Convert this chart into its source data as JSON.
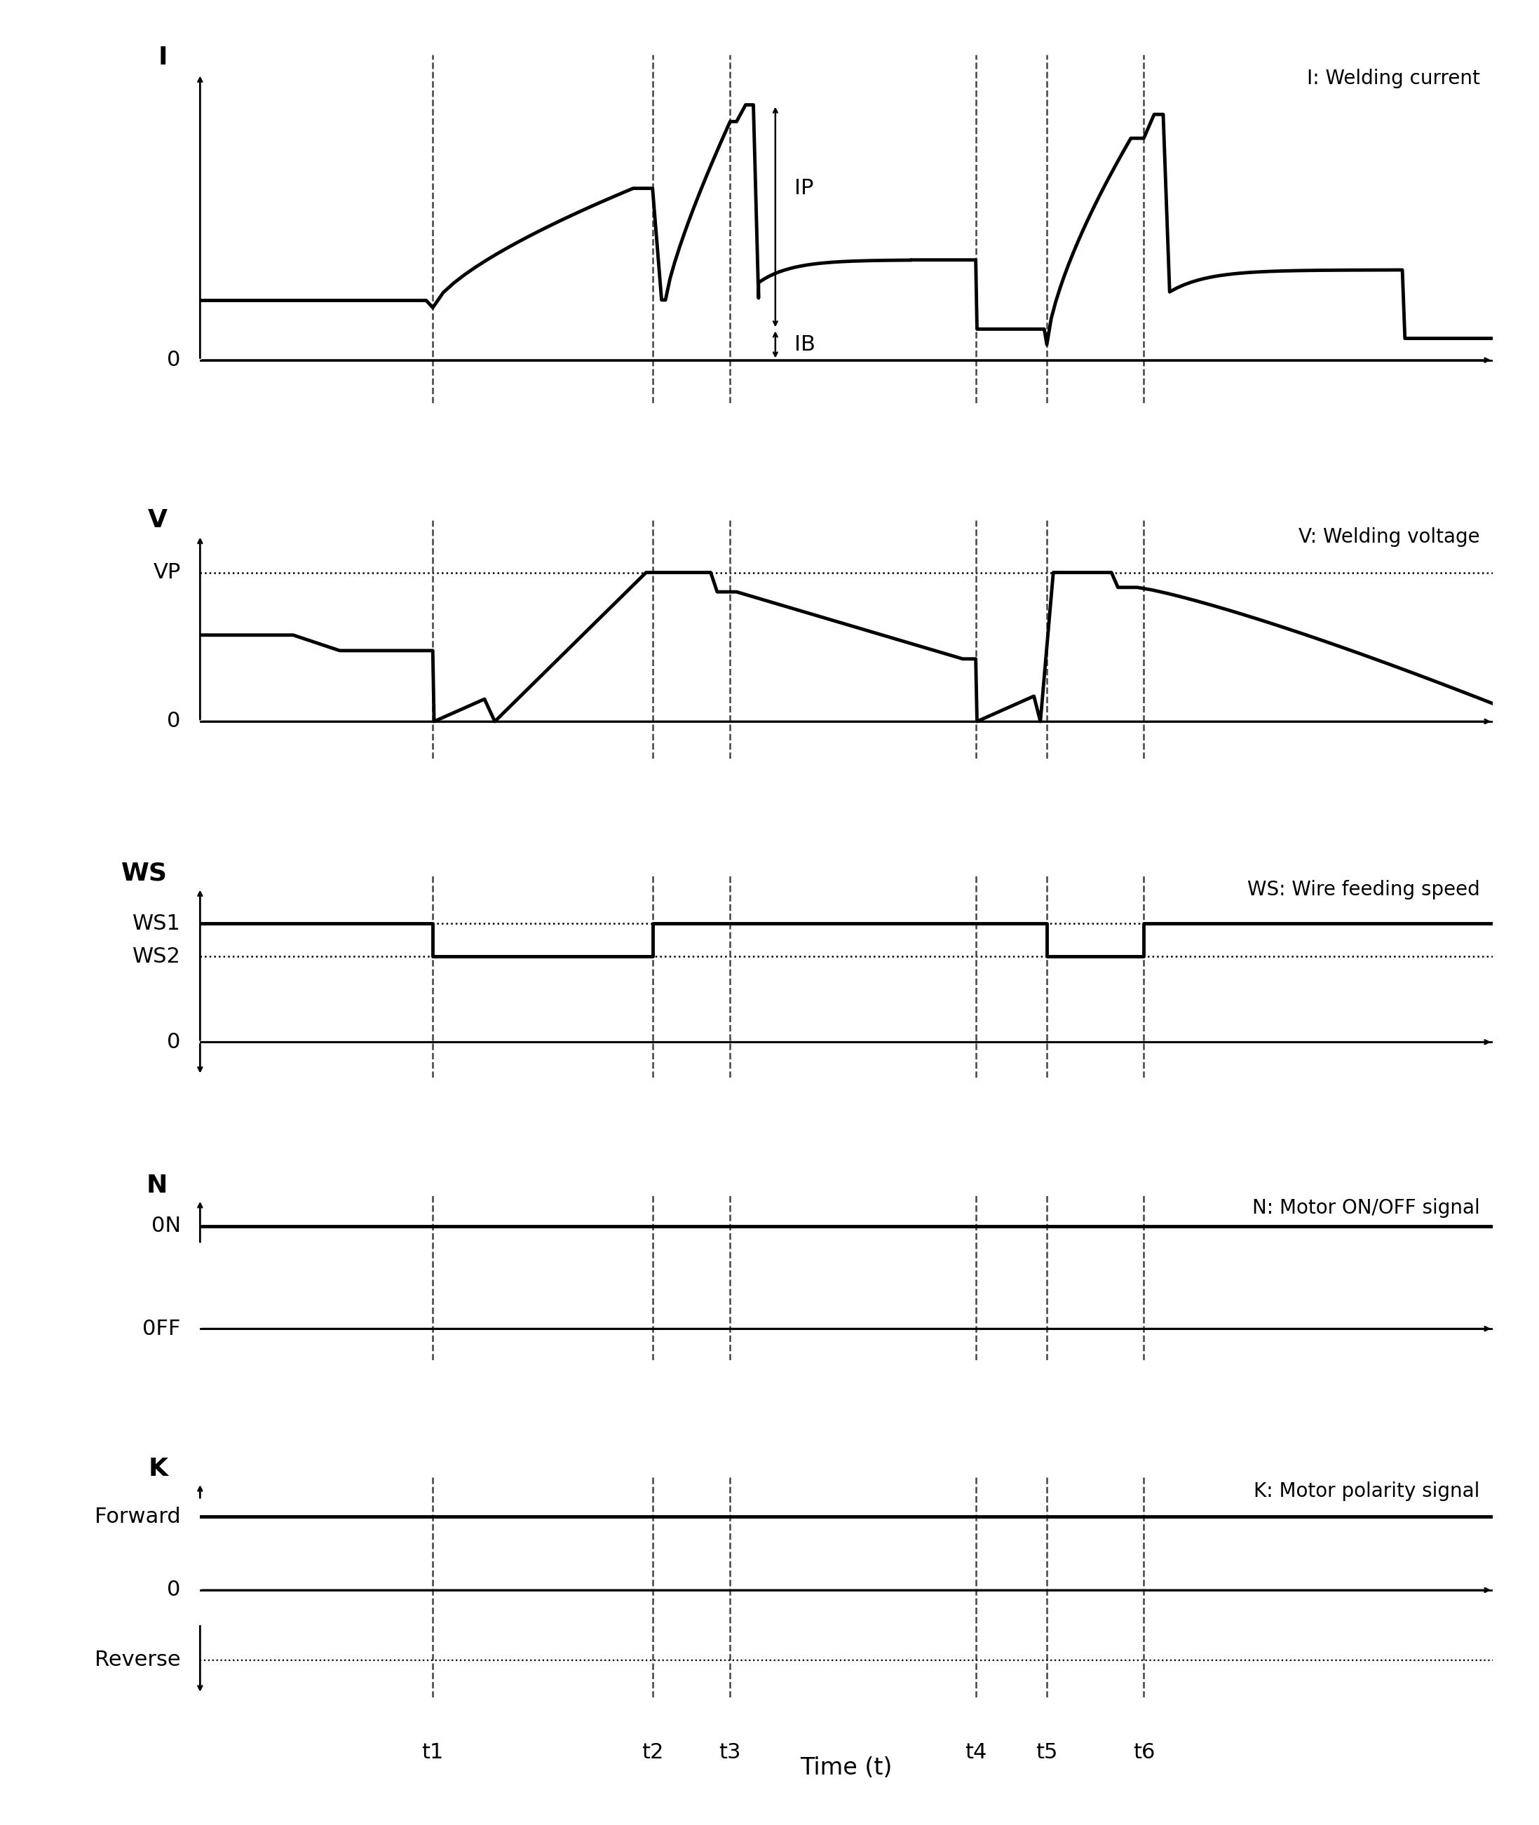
{
  "time_label": "Time (t)",
  "t_ticks": [
    "t1",
    "t2",
    "t3",
    "t4",
    "t5",
    "t6"
  ],
  "subplot_descriptions": [
    "I: Welding current",
    "V: Welding voltage",
    "WS: Wire feeding speed",
    "N: Motor ON/OFF signal",
    "K: Motor polarity signal"
  ],
  "background_color": "#ffffff",
  "line_color": "#000000",
  "dashed_color": "#444444"
}
